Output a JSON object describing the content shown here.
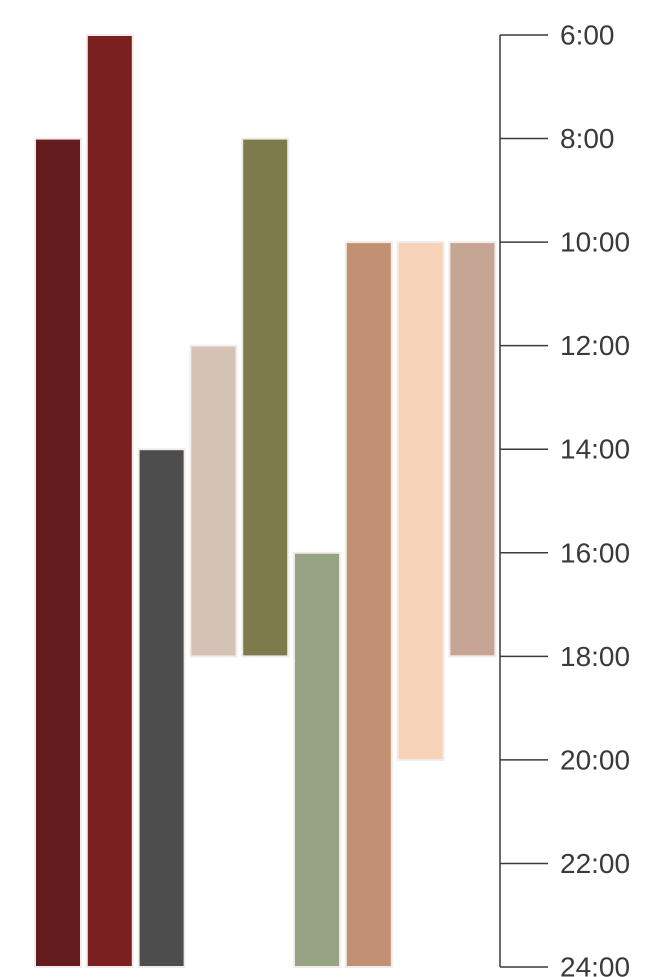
{
  "chart_data": {
    "type": "bar",
    "subtype": "floating-range",
    "orientation": "vertical",
    "title": "",
    "xlabel": "",
    "ylabel": "",
    "y_axis_side": "right",
    "y_inverted": true,
    "ylim": [
      6,
      24
    ],
    "y_ticks": [
      6,
      8,
      10,
      12,
      14,
      16,
      18,
      20,
      22,
      24
    ],
    "y_tick_labels": [
      "6:00",
      "8:00",
      "10:00",
      "12:00",
      "14:00",
      "16:00",
      "18:00",
      "20:00",
      "22:00",
      "24:00"
    ],
    "grid": false,
    "legend": "none",
    "bars": [
      {
        "start": 8,
        "end": 24,
        "color": "#651c1e"
      },
      {
        "start": 6,
        "end": 24,
        "color": "#7b2021"
      },
      {
        "start": 14,
        "end": 24,
        "color": "#4d4d4d"
      },
      {
        "start": 12,
        "end": 18,
        "color": "#d4c2b4"
      },
      {
        "start": 8,
        "end": 18,
        "color": "#7d7a4b"
      },
      {
        "start": 16,
        "end": 24,
        "color": "#98a386"
      },
      {
        "start": 10,
        "end": 24,
        "color": "#c29173"
      },
      {
        "start": 10,
        "end": 20,
        "color": "#f7d3b9"
      },
      {
        "start": 10,
        "end": 18,
        "color": "#c6a594"
      }
    ]
  }
}
